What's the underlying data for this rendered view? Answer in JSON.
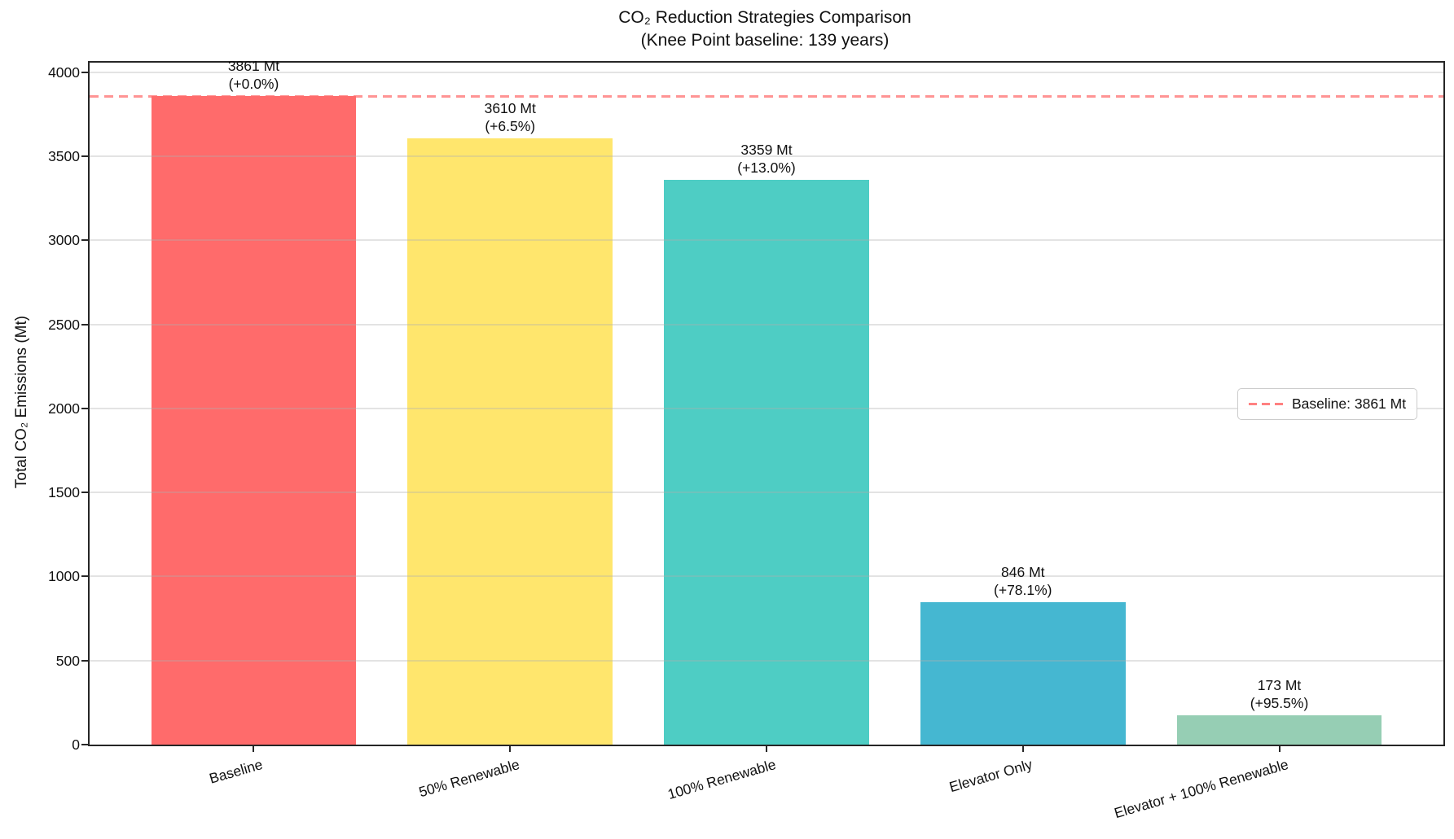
{
  "chart_data": {
    "type": "bar",
    "title": "CO₂ Reduction Strategies Comparison",
    "subtitle": "(Knee Point baseline: 139 years)",
    "xlabel": "",
    "ylabel": "Total CO₂ Emissions (Mt)",
    "categories": [
      "Baseline",
      "50% Renewable",
      "100% Renewable",
      "Elevator Only",
      "Elevator + 100% Renewable"
    ],
    "values": [
      3861,
      3610,
      3359,
      846,
      173
    ],
    "bar_labels": [
      {
        "value": "3861 Mt",
        "pct": "(+0.0%)"
      },
      {
        "value": "3610 Mt",
        "pct": "(+6.5%)"
      },
      {
        "value": "3359 Mt",
        "pct": "(+13.0%)"
      },
      {
        "value": "846 Mt",
        "pct": "(+78.1%)"
      },
      {
        "value": "173 Mt",
        "pct": "(+95.5%)"
      }
    ],
    "bar_colors": [
      "#FF6B6B",
      "#FFE66D",
      "#4ECDC4",
      "#45B7D1",
      "#96CEB4"
    ],
    "yticks": [
      0,
      500,
      1000,
      1500,
      2000,
      2500,
      3000,
      3500,
      4000
    ],
    "ylim": [
      0,
      4058
    ],
    "grid": true,
    "grid_over_bars": true,
    "baseline_line": {
      "value": 3861,
      "color": "#FF6B6B",
      "style": "dashed",
      "legend_label": "Baseline: 3861 Mt"
    },
    "legend_position": "center-right"
  }
}
